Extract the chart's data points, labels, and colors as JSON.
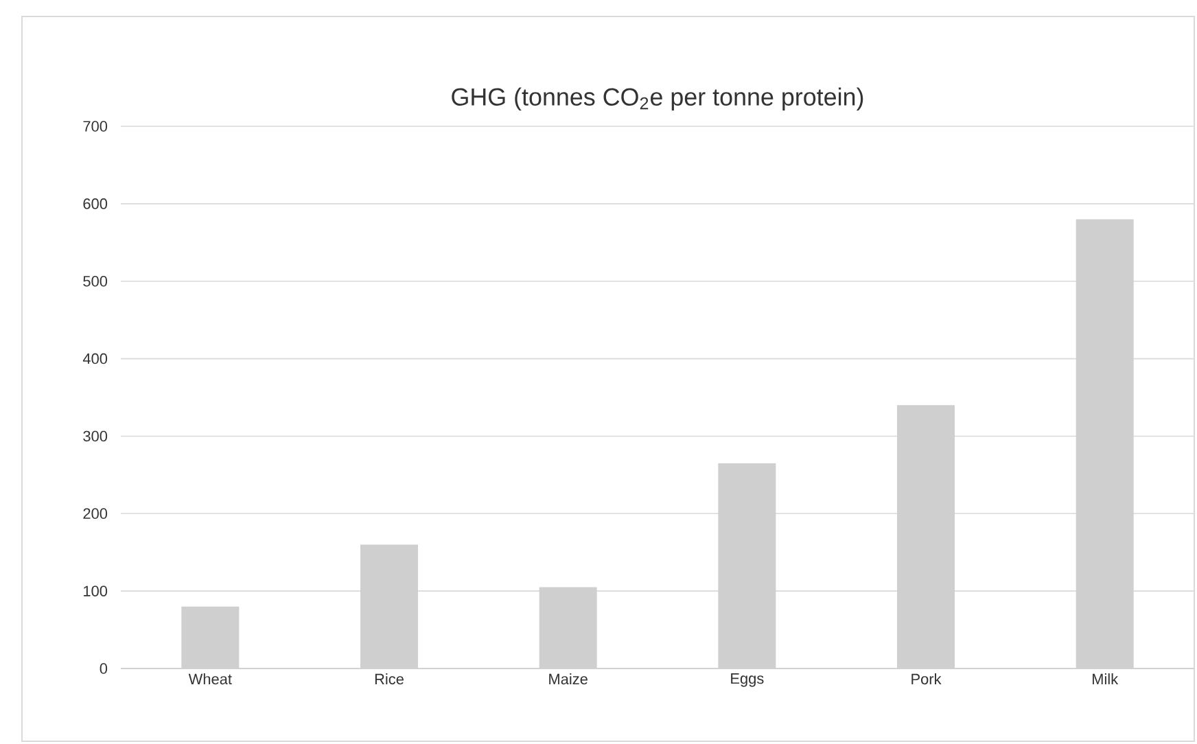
{
  "chart_data": {
    "type": "bar",
    "title": "GHG (tonnes CO$_{2}$e per tonne protein)",
    "categories": [
      "Wheat",
      "Rice",
      "Maize",
      "Eggs",
      "Pork",
      "Milk"
    ],
    "values": [
      80,
      160,
      105,
      265,
      340,
      580
    ],
    "color": "#cfcfcf",
    "ylim": [
      0,
      700
    ],
    "yticks": [
      0,
      100,
      200,
      300,
      400,
      500,
      600,
      700
    ],
    "grid": "y"
  }
}
